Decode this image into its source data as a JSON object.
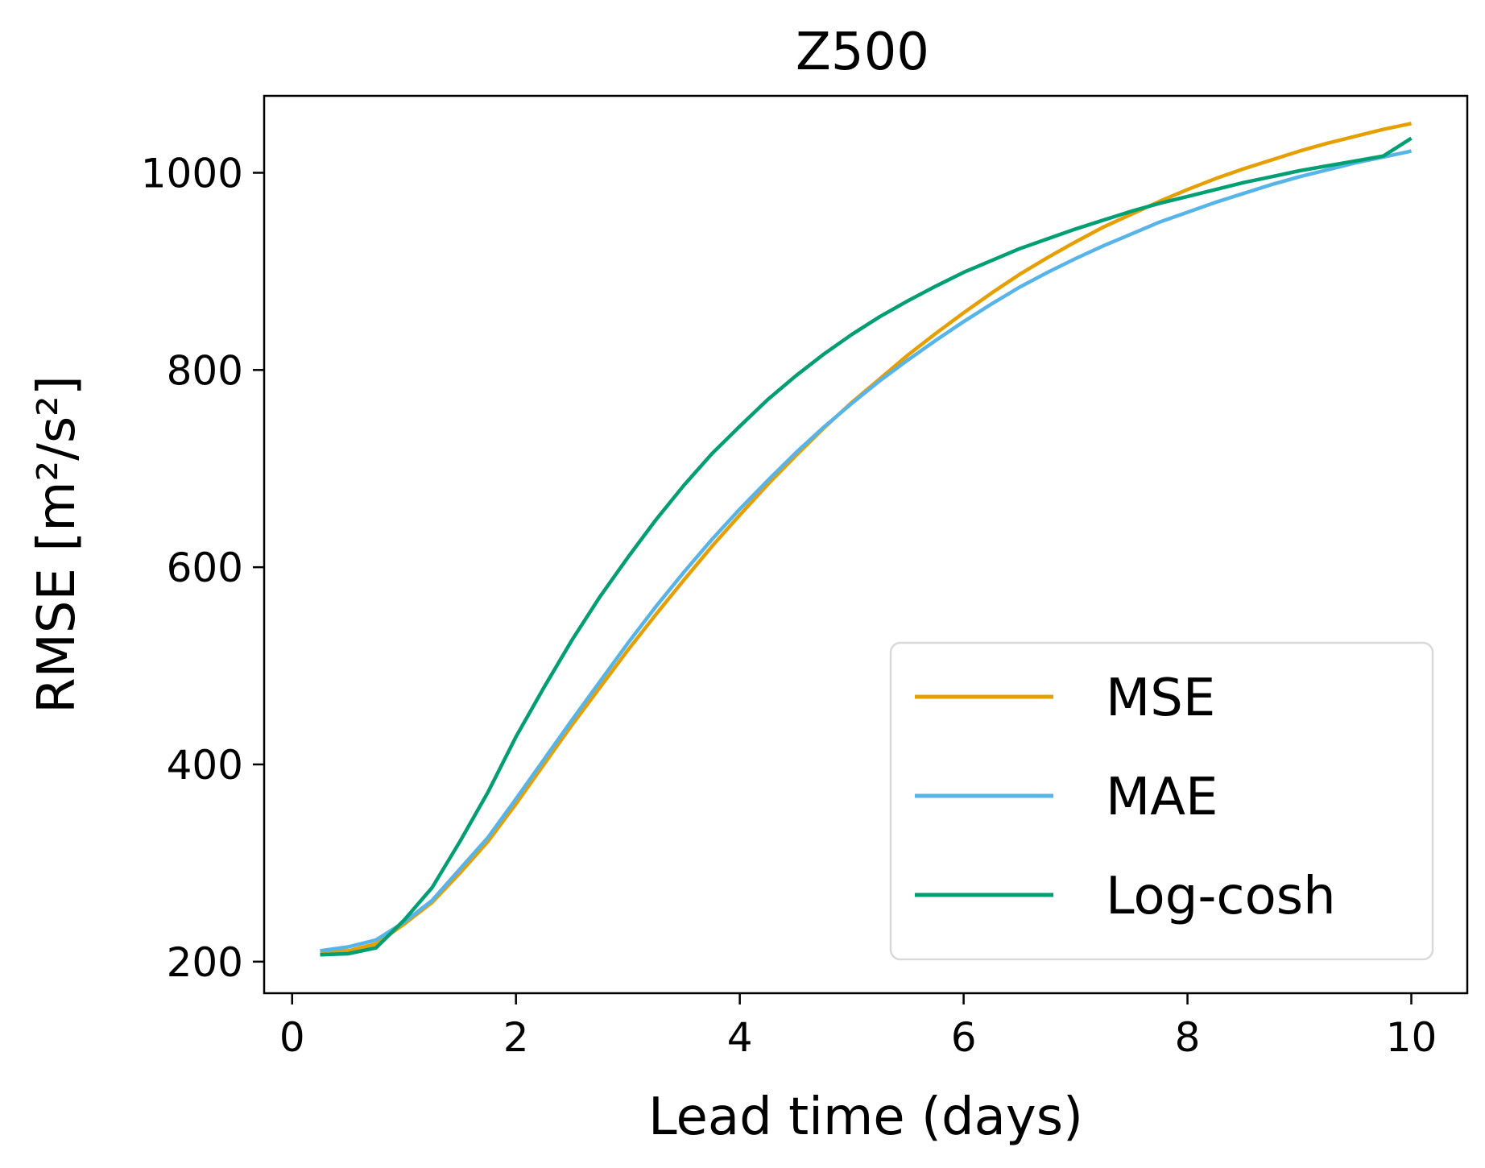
{
  "chart_data": {
    "type": "line",
    "title": "Z500",
    "xlabel": "Lead time (days)",
    "ylabel": "RMSE [m²/s²]",
    "xlim": [
      -0.25,
      10.5
    ],
    "ylim": [
      168,
      1078
    ],
    "xticks": [
      0,
      2,
      4,
      6,
      8,
      10
    ],
    "yticks": [
      200,
      400,
      600,
      800,
      1000
    ],
    "grid": false,
    "legend_position": "lower-right",
    "x": [
      0.25,
      0.5,
      0.75,
      1.0,
      1.25,
      1.5,
      1.75,
      2.0,
      2.25,
      2.5,
      2.75,
      3.0,
      3.25,
      3.5,
      3.75,
      4.0,
      4.25,
      4.5,
      4.75,
      5.0,
      5.25,
      5.5,
      5.75,
      6.0,
      6.25,
      6.5,
      6.75,
      7.0,
      7.25,
      7.5,
      7.75,
      8.0,
      8.25,
      8.5,
      8.75,
      9.0,
      9.25,
      9.5,
      9.75,
      10.0
    ],
    "series": [
      {
        "name": "MSE",
        "color": "#E69F00",
        "values": [
          210,
          211,
          218,
          238,
          260,
          290,
          322,
          360,
          400,
          440,
          478,
          516,
          552,
          587,
          621,
          653,
          684,
          713,
          741,
          767,
          791,
          815,
          837,
          858,
          878,
          897,
          914,
          930,
          945,
          958,
          971,
          983,
          994,
          1004,
          1013,
          1022,
          1030,
          1037,
          1044,
          1050
        ]
      },
      {
        "name": "MAE",
        "color": "#56B4E9",
        "values": [
          211,
          215,
          222,
          240,
          262,
          294,
          326,
          365,
          405,
          445,
          484,
          523,
          560,
          595,
          628,
          659,
          688,
          716,
          742,
          766,
          789,
          810,
          830,
          849,
          867,
          884,
          899,
          913,
          926,
          938,
          950,
          960,
          970,
          979,
          988,
          996,
          1003,
          1010,
          1016,
          1022
        ]
      },
      {
        "name": "Log-cosh",
        "color": "#009E73",
        "values": [
          207,
          208,
          214,
          242,
          275,
          322,
          372,
          428,
          478,
          526,
          570,
          610,
          648,
          683,
          715,
          743,
          770,
          794,
          816,
          836,
          854,
          870,
          885,
          899,
          911,
          923,
          933,
          943,
          952,
          961,
          969,
          976,
          983,
          990,
          996,
          1002,
          1007,
          1012,
          1017,
          1035
        ]
      }
    ]
  }
}
